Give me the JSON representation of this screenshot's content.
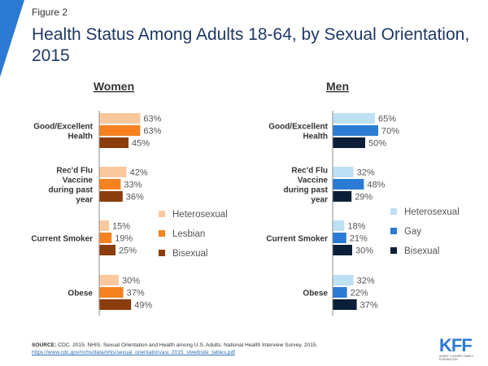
{
  "figure_label": "Figure 2",
  "title": "Health Status Among Adults 18-64, by Sexual Orientation, 2015",
  "colors": {
    "title": "#1f3864",
    "corner": "#2b7bd4",
    "women": [
      "#fbc89e",
      "#f5821f",
      "#8b3d0b"
    ],
    "men": [
      "#bde0f5",
      "#2b7bd4",
      "#0b1f38"
    ]
  },
  "chart_data": [
    {
      "type": "bar",
      "orientation": "horizontal",
      "title": "Women",
      "categories": [
        "Good/Excellent Health",
        "Rec'd Flu Vaccine during past year",
        "Current Smoker",
        "Obese"
      ],
      "series": [
        {
          "name": "Heterosexual",
          "values": [
            63,
            42,
            15,
            30
          ]
        },
        {
          "name": "Lesbian",
          "values": [
            63,
            33,
            19,
            37
          ]
        },
        {
          "name": "Bisexual",
          "values": [
            45,
            36,
            25,
            49
          ]
        }
      ],
      "value_suffix": "%",
      "legend_position": "right",
      "grid": false
    },
    {
      "type": "bar",
      "orientation": "horizontal",
      "title": "Men",
      "categories": [
        "Good/Excellent Health",
        "Rec'd Flu Vaccine during past year",
        "Current Smoker",
        "Obese"
      ],
      "series": [
        {
          "name": "Heterosexual",
          "values": [
            65,
            32,
            18,
            32
          ]
        },
        {
          "name": "Gay",
          "values": [
            70,
            48,
            21,
            22
          ]
        },
        {
          "name": "Bisexual",
          "values": [
            50,
            29,
            30,
            37
          ]
        }
      ],
      "value_suffix": "%",
      "legend_position": "right",
      "grid": false
    }
  ],
  "source": {
    "label": "SOURCE:",
    "text": "CDC. 2015. NHIS. Sexual Orientation and Health among U.S. Adults: National Health Interview Survey, 2015.",
    "url": "https://www.cdc.gov/nchs/data/nhis/sexual_orientation/asi_2015_stwebsite_tables.pdf"
  },
  "logo": {
    "text": "KFF",
    "subtext": "HENRY J KAISER FAMILY FOUNDATION"
  }
}
